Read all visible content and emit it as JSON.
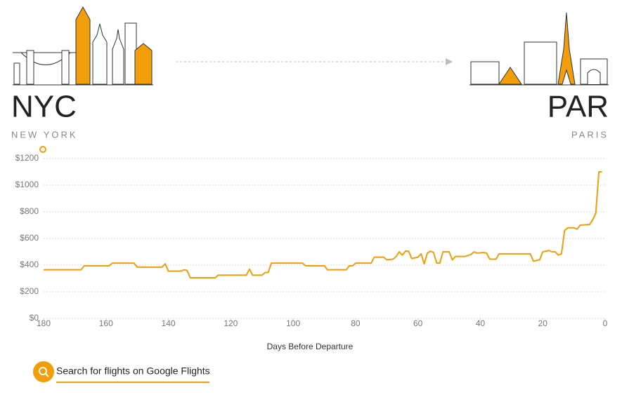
{
  "header": {
    "origin_code": "NYC",
    "origin_city": "NEW YORK",
    "destination_code": "PAR",
    "destination_city": "PARIS"
  },
  "search_link": {
    "text": "Search for flights on Google Flights"
  },
  "chart_data": {
    "type": "line",
    "x_label": "Days Before Departure",
    "x": [
      180,
      168,
      167,
      159,
      158,
      151,
      150,
      142,
      141,
      140,
      136,
      135,
      134,
      133,
      125,
      124,
      115,
      114,
      113,
      110,
      109,
      108,
      107,
      97,
      96,
      90,
      89,
      83,
      82,
      81,
      80,
      75,
      74,
      71,
      70,
      68,
      67,
      66,
      65,
      64,
      63,
      62,
      60,
      59,
      58,
      57,
      56,
      55,
      54,
      53,
      52,
      50,
      49,
      48,
      45,
      43,
      42,
      41,
      39,
      38,
      37,
      35,
      34,
      24,
      23,
      21,
      20,
      18,
      17,
      16,
      15,
      14,
      13,
      12,
      10,
      9,
      8,
      5,
      4,
      3,
      2,
      1
    ],
    "series": [
      {
        "color": "#f29d0a",
        "values": [
          365,
          365,
          395,
          395,
          415,
          415,
          385,
          385,
          410,
          355,
          355,
          365,
          360,
          305,
          305,
          325,
          325,
          370,
          325,
          325,
          345,
          345,
          415,
          415,
          395,
          395,
          365,
          365,
          395,
          395,
          415,
          415,
          460,
          460,
          440,
          445,
          465,
          500,
          475,
          505,
          505,
          450,
          460,
          485,
          410,
          490,
          505,
          495,
          415,
          415,
          500,
          500,
          440,
          465,
          465,
          480,
          500,
          490,
          495,
          490,
          445,
          445,
          485,
          485,
          430,
          440,
          500,
          510,
          500,
          500,
          475,
          485,
          660,
          680,
          680,
          670,
          700,
          705,
          740,
          790,
          1100,
          1100
        ]
      }
    ],
    "xlim": [
      180,
      0
    ],
    "xticks": [
      180,
      160,
      140,
      120,
      100,
      80,
      60,
      40,
      20,
      0
    ],
    "ylim": [
      0,
      1200
    ],
    "yticks": [
      {
        "value": 0,
        "label": "$0"
      },
      {
        "value": 200,
        "label": "$200"
      },
      {
        "value": 400,
        "label": "$400"
      },
      {
        "value": 600,
        "label": "$600"
      },
      {
        "value": 800,
        "label": "$800"
      },
      {
        "value": 1000,
        "label": "$1000"
      },
      {
        "value": 1200,
        "label": "$1200"
      }
    ],
    "grid": true
  }
}
